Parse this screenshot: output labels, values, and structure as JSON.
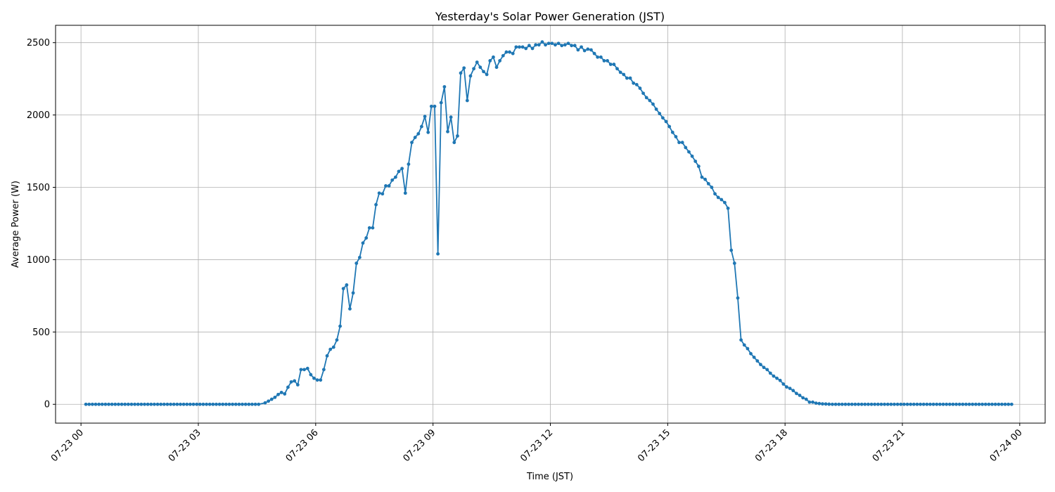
{
  "chart_data": {
    "type": "line",
    "title": "Yesterday's Solar Power Generation (JST)",
    "xlabel": "Time (JST)",
    "ylabel": "Average Power (W)",
    "x_range_hours": [
      -0.65,
      24.65
    ],
    "ylim": [
      -130,
      2620
    ],
    "x_ticks": [
      {
        "hour": 0,
        "label": "07-23 00"
      },
      {
        "hour": 3,
        "label": "07-23 03"
      },
      {
        "hour": 6,
        "label": "07-23 06"
      },
      {
        "hour": 9,
        "label": "07-23 09"
      },
      {
        "hour": 12,
        "label": "07-23 12"
      },
      {
        "hour": 15,
        "label": "07-23 15"
      },
      {
        "hour": 18,
        "label": "07-23 18"
      },
      {
        "hour": 21,
        "label": "07-23 21"
      },
      {
        "hour": 24,
        "label": "07-24 00"
      }
    ],
    "y_ticks": [
      {
        "value": 0,
        "label": "0"
      },
      {
        "value": 500,
        "label": "500"
      },
      {
        "value": 1000,
        "label": "1000"
      },
      {
        "value": 1500,
        "label": "1500"
      },
      {
        "value": 2000,
        "label": "2000"
      },
      {
        "value": 2500,
        "label": "2500"
      }
    ],
    "grid": true,
    "series": [
      {
        "name": "Average Power (W)",
        "color": "#1f77b4",
        "time_step_minutes": 5,
        "night_zero_ranges_hours": [
          [
            0.125,
            4.6
          ],
          [
            19.21,
            23.87
          ]
        ],
        "points": [
          [
            4.708,
            10
          ],
          [
            4.792,
            22
          ],
          [
            4.875,
            35
          ],
          [
            4.958,
            48
          ],
          [
            5.042,
            68
          ],
          [
            5.125,
            82
          ],
          [
            5.208,
            72
          ],
          [
            5.292,
            118
          ],
          [
            5.375,
            155
          ],
          [
            5.458,
            162
          ],
          [
            5.542,
            135
          ],
          [
            5.625,
            240
          ],
          [
            5.708,
            240
          ],
          [
            5.792,
            248
          ],
          [
            5.875,
            205
          ],
          [
            5.958,
            180
          ],
          [
            6.042,
            168
          ],
          [
            6.125,
            168
          ],
          [
            6.208,
            240
          ],
          [
            6.292,
            335
          ],
          [
            6.375,
            380
          ],
          [
            6.458,
            395
          ],
          [
            6.542,
            445
          ],
          [
            6.625,
            540
          ],
          [
            6.708,
            800
          ],
          [
            6.792,
            825
          ],
          [
            6.875,
            660
          ],
          [
            6.958,
            770
          ],
          [
            7.042,
            975
          ],
          [
            7.125,
            1015
          ],
          [
            7.208,
            1115
          ],
          [
            7.292,
            1150
          ],
          [
            7.375,
            1220
          ],
          [
            7.458,
            1220
          ],
          [
            7.542,
            1380
          ],
          [
            7.625,
            1460
          ],
          [
            7.708,
            1455
          ],
          [
            7.792,
            1510
          ],
          [
            7.875,
            1510
          ],
          [
            7.958,
            1550
          ],
          [
            8.042,
            1570
          ],
          [
            8.125,
            1610
          ],
          [
            8.208,
            1630
          ],
          [
            8.292,
            1460
          ],
          [
            8.375,
            1660
          ],
          [
            8.458,
            1810
          ],
          [
            8.542,
            1845
          ],
          [
            8.625,
            1870
          ],
          [
            8.708,
            1920
          ],
          [
            8.792,
            1990
          ],
          [
            8.875,
            1880
          ],
          [
            8.958,
            2060
          ],
          [
            9.042,
            2060
          ],
          [
            9.125,
            1040
          ],
          [
            9.208,
            2085
          ],
          [
            9.292,
            2195
          ],
          [
            9.375,
            1885
          ],
          [
            9.458,
            1985
          ],
          [
            9.542,
            1810
          ],
          [
            9.625,
            1855
          ],
          [
            9.708,
            2290
          ],
          [
            9.792,
            2325
          ],
          [
            9.875,
            2100
          ],
          [
            9.958,
            2270
          ],
          [
            10.042,
            2320
          ],
          [
            10.125,
            2365
          ],
          [
            10.208,
            2330
          ],
          [
            10.292,
            2300
          ],
          [
            10.375,
            2280
          ],
          [
            10.458,
            2375
          ],
          [
            10.542,
            2400
          ],
          [
            10.625,
            2330
          ],
          [
            10.708,
            2375
          ],
          [
            10.792,
            2410
          ],
          [
            10.875,
            2435
          ],
          [
            10.958,
            2435
          ],
          [
            11.042,
            2425
          ],
          [
            11.125,
            2470
          ],
          [
            11.208,
            2470
          ],
          [
            11.292,
            2470
          ],
          [
            11.375,
            2460
          ],
          [
            11.458,
            2480
          ],
          [
            11.542,
            2460
          ],
          [
            11.625,
            2485
          ],
          [
            11.708,
            2485
          ],
          [
            11.792,
            2505
          ],
          [
            11.875,
            2485
          ],
          [
            11.958,
            2495
          ],
          [
            12.042,
            2495
          ],
          [
            12.125,
            2485
          ],
          [
            12.208,
            2495
          ],
          [
            12.292,
            2480
          ],
          [
            12.375,
            2485
          ],
          [
            12.458,
            2495
          ],
          [
            12.542,
            2480
          ],
          [
            12.625,
            2480
          ],
          [
            12.708,
            2450
          ],
          [
            12.792,
            2470
          ],
          [
            12.875,
            2445
          ],
          [
            12.958,
            2455
          ],
          [
            13.042,
            2450
          ],
          [
            13.125,
            2425
          ],
          [
            13.208,
            2400
          ],
          [
            13.292,
            2400
          ],
          [
            13.375,
            2375
          ],
          [
            13.458,
            2375
          ],
          [
            13.542,
            2350
          ],
          [
            13.625,
            2350
          ],
          [
            13.708,
            2320
          ],
          [
            13.792,
            2295
          ],
          [
            13.875,
            2280
          ],
          [
            13.958,
            2255
          ],
          [
            14.042,
            2255
          ],
          [
            14.125,
            2220
          ],
          [
            14.208,
            2210
          ],
          [
            14.292,
            2185
          ],
          [
            14.375,
            2150
          ],
          [
            14.458,
            2120
          ],
          [
            14.542,
            2100
          ],
          [
            14.625,
            2075
          ],
          [
            14.708,
            2040
          ],
          [
            14.792,
            2010
          ],
          [
            14.875,
            1980
          ],
          [
            14.958,
            1955
          ],
          [
            15.042,
            1920
          ],
          [
            15.125,
            1880
          ],
          [
            15.208,
            1850
          ],
          [
            15.292,
            1810
          ],
          [
            15.375,
            1810
          ],
          [
            15.458,
            1775
          ],
          [
            15.542,
            1745
          ],
          [
            15.625,
            1715
          ],
          [
            15.708,
            1680
          ],
          [
            15.792,
            1645
          ],
          [
            15.875,
            1570
          ],
          [
            15.958,
            1555
          ],
          [
            16.042,
            1525
          ],
          [
            16.125,
            1500
          ],
          [
            16.208,
            1455
          ],
          [
            16.292,
            1430
          ],
          [
            16.375,
            1415
          ],
          [
            16.458,
            1395
          ],
          [
            16.542,
            1355
          ],
          [
            16.625,
            1065
          ],
          [
            16.708,
            975
          ],
          [
            16.792,
            735
          ],
          [
            16.875,
            445
          ],
          [
            16.958,
            410
          ],
          [
            17.042,
            385
          ],
          [
            17.125,
            350
          ],
          [
            17.208,
            325
          ],
          [
            17.292,
            300
          ],
          [
            17.375,
            275
          ],
          [
            17.458,
            255
          ],
          [
            17.542,
            240
          ],
          [
            17.625,
            215
          ],
          [
            17.708,
            195
          ],
          [
            17.792,
            180
          ],
          [
            17.875,
            165
          ],
          [
            17.958,
            140
          ],
          [
            18.042,
            120
          ],
          [
            18.125,
            110
          ],
          [
            18.208,
            95
          ],
          [
            18.292,
            75
          ],
          [
            18.375,
            62
          ],
          [
            18.458,
            45
          ],
          [
            18.542,
            35
          ],
          [
            18.625,
            15
          ],
          [
            18.708,
            15
          ],
          [
            18.792,
            8
          ],
          [
            18.875,
            5
          ],
          [
            18.958,
            3
          ],
          [
            19.042,
            2
          ],
          [
            19.125,
            1
          ]
        ]
      }
    ]
  }
}
